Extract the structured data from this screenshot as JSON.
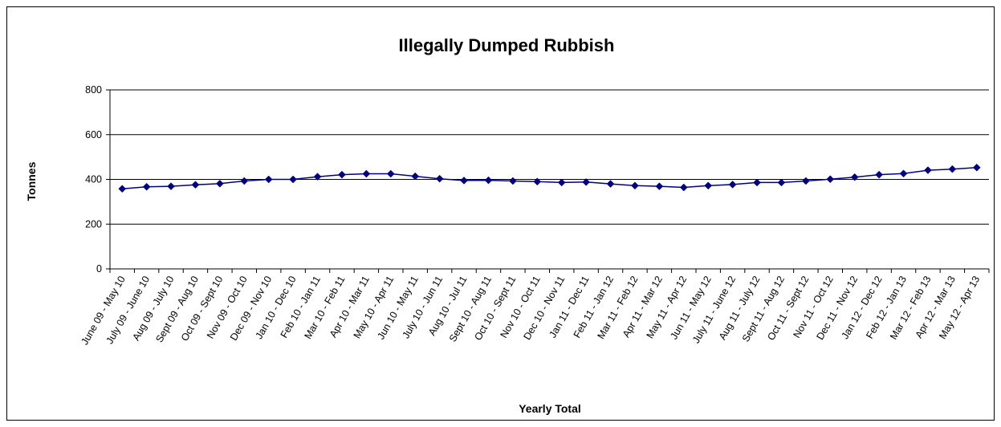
{
  "chart_data": {
    "type": "line",
    "title": "Illegally Dumped Rubbish",
    "xlabel": "Yearly Total",
    "ylabel": "Tonnes",
    "ylim": [
      0,
      800
    ],
    "yticks": [
      0,
      200,
      400,
      600,
      800
    ],
    "grid": true,
    "legend": "none",
    "colors": {
      "line": "#000080",
      "marker": "#000080",
      "grid": "#000000",
      "axis": "#000000"
    },
    "categories": [
      "June 09 - May 10",
      "July 09 - June 10",
      "Aug 09 - July 10",
      "Sept 09 - Aug 10",
      "Oct 09 - Sept 10",
      "Nov 09 - Oct 10",
      "Dec 09 - Nov 10",
      "Jan 10 - Dec 10",
      "Feb 10 - Jan 11",
      "Mar 10 - Feb 11",
      "Apr 10 - Mar 11",
      "May 10 - Apr 11",
      "Jun 10 - May 11",
      "July 10 - Jun 11",
      "Aug 10 - Jul 11",
      "Sept 10 - Aug 11",
      "Oct 10 - Sept 11",
      "Nov 10 - Oct 11",
      "Dec 10 - Nov 11",
      "Jan 11 - Dec 11",
      "Feb 11 - Jan 12",
      "Mar 11 - Feb 12",
      "Apr 11 - Mar 12",
      "May 11 - Apr 12",
      "Jun 11 - May 12",
      "July 11 - June 12",
      "Aug 11 - July 12",
      "Sept 11 - Aug 12",
      "Oct 11 - Sept 12",
      "Nov 11 - Oct 12",
      "Dec 11 - Nov 12",
      "Jan 12 - Dec 12",
      "Feb 12 - Jan 13",
      "Mar 12 - Feb 13",
      "Apr 12 - Mar 13",
      "May 12 - Apr 13"
    ],
    "values": [
      358,
      367,
      369,
      376,
      381,
      393,
      400,
      400,
      412,
      421,
      425,
      425,
      414,
      403,
      395,
      396,
      393,
      390,
      386,
      388,
      380,
      372,
      369,
      364,
      372,
      377,
      386,
      386,
      393,
      401,
      410,
      421,
      426,
      441,
      446,
      453
    ]
  }
}
